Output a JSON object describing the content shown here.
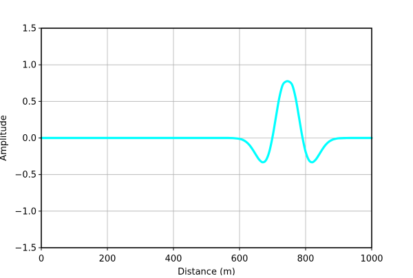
{
  "chart_data": {
    "type": "line",
    "title": "",
    "xlabel": "Distance (m)",
    "ylabel": "Amplitude",
    "xlim": [
      0,
      1000
    ],
    "ylim": [
      -1.5,
      1.5
    ],
    "grid": true,
    "x_ticks": [
      0,
      200,
      400,
      600,
      800,
      1000
    ],
    "x_tick_labels": [
      "0",
      "200",
      "400",
      "600",
      "800",
      "1000"
    ],
    "y_ticks": [
      1.5,
      1.0,
      0.5,
      0.0,
      -0.5,
      -1.0,
      -1.5
    ],
    "y_tick_labels": [
      "1.5",
      "1.0",
      "0.5",
      "0.0",
      "−0.5",
      "−1.0",
      "−1.5"
    ],
    "series": [
      {
        "color": "#00ffff",
        "x": [
          0,
          100,
          200,
          300,
          400,
          500,
          560,
          580,
          600,
          610,
          620,
          630,
          640,
          650,
          660,
          670,
          680,
          690,
          700,
          710,
          720,
          730,
          740,
          750,
          760,
          770,
          780,
          790,
          800,
          810,
          820,
          830,
          840,
          850,
          860,
          870,
          880,
          890,
          900,
          920,
          940,
          1000
        ],
        "y": [
          0,
          0,
          0,
          0,
          0,
          0,
          0,
          -0.002,
          -0.012,
          -0.026,
          -0.053,
          -0.097,
          -0.16,
          -0.233,
          -0.299,
          -0.332,
          -0.304,
          -0.189,
          0.018,
          0.282,
          0.541,
          0.718,
          0.77,
          0.77,
          0.718,
          0.541,
          0.282,
          0.018,
          -0.189,
          -0.304,
          -0.332,
          -0.299,
          -0.233,
          -0.16,
          -0.097,
          -0.053,
          -0.026,
          -0.012,
          -0.004,
          -0.001,
          0,
          0
        ]
      }
    ]
  }
}
